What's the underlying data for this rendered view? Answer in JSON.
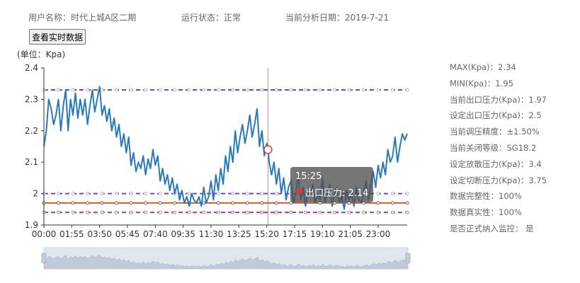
{
  "header": {
    "user_label": "用户名称：时代上城A区二期",
    "status_label": "运行状态：正常",
    "date_label": "当前分析日期：2019-7-21"
  },
  "realtime_button": "查看实时数据",
  "unit_label": "(单位：Kpa)",
  "tooltip": {
    "time": "15:25",
    "series_label": "出口压力: 2.14"
  },
  "side_panel": [
    "MAX(Kpa)：2.34",
    "MIN(Kpa)：1.95",
    "当前出口压力(Kpa)：1.97",
    "设定出口压力(Kpa)：2.5",
    "当前调压精度：±1.50%",
    "当前关闭等级：SG18.2",
    "设定放散压力(Kpa)：3.4",
    "设定切断压力(Kpa)：3.75",
    "数据完整性：100%",
    "数据真实性：100%",
    "是否正式纳入监控：  是"
  ],
  "colors": {
    "main_series": "#2a7ab8",
    "upper_dash": "#6a3fb5",
    "orange_line": "#e05a1c",
    "lower_dash": "#8040c0",
    "tooltip_dot": "#d63a3a"
  },
  "chart_data": {
    "type": "line",
    "ylim": [
      1.9,
      2.4
    ],
    "yticks": [
      "1.9",
      "2",
      "2.1",
      "2.2",
      "2.3",
      "2.4"
    ],
    "xticks": [
      "00:00",
      "01:55",
      "03:50",
      "05:45",
      "07:40",
      "09:35",
      "11:30",
      "13:25",
      "15:20",
      "17:15",
      "19:10",
      "21:05",
      "23:00"
    ],
    "x_range_minutes": [
      0,
      1500
    ],
    "crosshair_time_minutes": 925,
    "series": [
      {
        "values_x_minutes": [
          0,
          10,
          20,
          30,
          40,
          50,
          60,
          70,
          80,
          90,
          100,
          110,
          120,
          130,
          140,
          150,
          160,
          170,
          180,
          190,
          200,
          210,
          220,
          230,
          240,
          250,
          260,
          270,
          280,
          290,
          300,
          310,
          320,
          330,
          340,
          350,
          360,
          370,
          380,
          390,
          400,
          410,
          420,
          430,
          440,
          450,
          460,
          470,
          480,
          490,
          500,
          510,
          520,
          530,
          540,
          550,
          560,
          570,
          580,
          590,
          600,
          610,
          620,
          630,
          640,
          650,
          660,
          670,
          680,
          690,
          700,
          710,
          720,
          730,
          740,
          750,
          760,
          770,
          780,
          790,
          800,
          810,
          820,
          830,
          840,
          850,
          860,
          870,
          880,
          890,
          900,
          910,
          920,
          925,
          930,
          940,
          950,
          960,
          970,
          980,
          990,
          1000,
          1010,
          1020,
          1030,
          1040,
          1050,
          1060,
          1070,
          1080,
          1090,
          1100,
          1110,
          1120,
          1130,
          1140,
          1150,
          1160,
          1170,
          1180,
          1190,
          1200,
          1210,
          1220,
          1230,
          1240,
          1250,
          1260,
          1270,
          1280,
          1290,
          1300,
          1310,
          1320,
          1330,
          1340,
          1350,
          1360,
          1370,
          1380,
          1390,
          1400,
          1410,
          1420,
          1430,
          1440,
          1450,
          1460,
          1470,
          1480,
          1490,
          1500
        ],
        "values": [
          2.15,
          2.2,
          2.3,
          2.27,
          2.22,
          2.25,
          2.3,
          2.2,
          2.28,
          2.33,
          2.2,
          2.3,
          2.25,
          2.32,
          2.24,
          2.3,
          2.25,
          2.3,
          2.22,
          2.28,
          2.33,
          2.26,
          2.3,
          2.34,
          2.25,
          2.28,
          2.23,
          2.27,
          2.2,
          2.24,
          2.18,
          2.22,
          2.15,
          2.19,
          2.13,
          2.18,
          2.09,
          2.13,
          2.07,
          2.1,
          2.08,
          2.12,
          2.06,
          2.11,
          2.08,
          2.14,
          2.09,
          2.12,
          2.04,
          2.08,
          2.03,
          2.06,
          2.01,
          2.05,
          2.0,
          2.03,
          1.98,
          2.01,
          1.97,
          1.99,
          1.96,
          2.0,
          1.98,
          1.97,
          1.99,
          1.96,
          2.02,
          1.97,
          1.99,
          2.04,
          1.98,
          2.06,
          2.01,
          2.08,
          2.03,
          2.12,
          2.07,
          2.15,
          2.1,
          2.2,
          2.13,
          2.18,
          2.22,
          2.16,
          2.2,
          2.25,
          2.18,
          2.22,
          2.27,
          2.15,
          2.2,
          2.12,
          2.16,
          2.14,
          2.1,
          2.06,
          2.1,
          2.03,
          2.08,
          2.0,
          2.05,
          1.98,
          2.02,
          2.04,
          1.97,
          2.0,
          2.06,
          1.98,
          2.02,
          1.96,
          2.01,
          1.99,
          2.03,
          1.97,
          2.0,
          1.98,
          2.05,
          1.97,
          2.0,
          2.03,
          1.96,
          2.0,
          2.02,
          1.97,
          1.99,
          1.95,
          2.01,
          1.98,
          2.0,
          1.96,
          2.02,
          1.98,
          1.97,
          2.0,
          2.04,
          1.98,
          2.03,
          2.07,
          2.02,
          2.09,
          2.05,
          2.1,
          2.06,
          2.14,
          2.1,
          2.12,
          2.18,
          2.1,
          2.15,
          2.19,
          2.17,
          2.19
        ]
      }
    ],
    "reference_lines": [
      2.33,
      1.97,
      1.94,
      2.0
    ]
  }
}
